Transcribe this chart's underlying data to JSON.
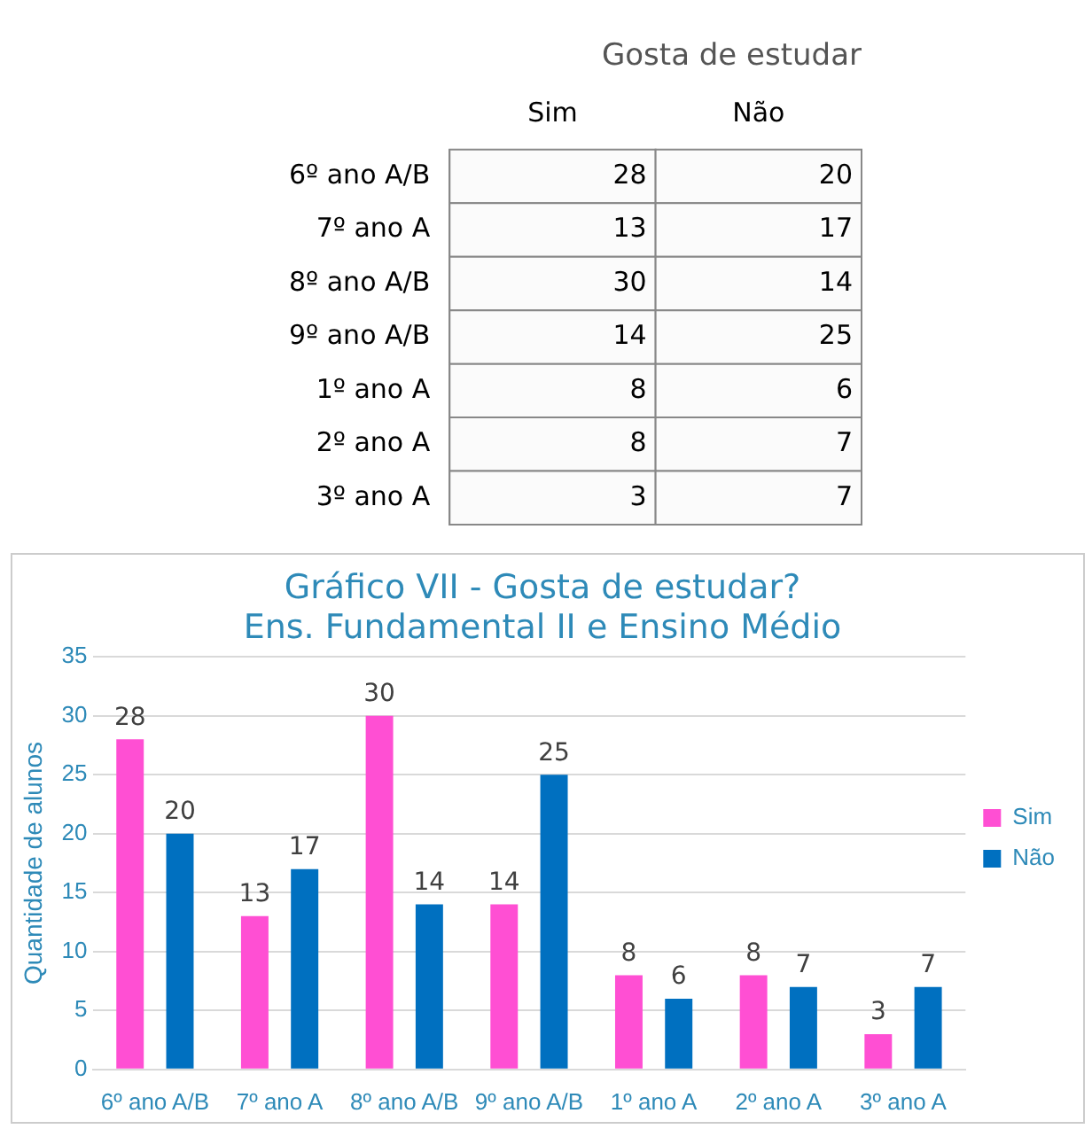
{
  "chart_data": [
    {
      "type": "heatmap",
      "title": "Gosta de estudar",
      "categories": [
        "Sim",
        "Não"
      ],
      "y_categories": [
        "6º ano A/B",
        "7º ano A",
        "8º ano A/B",
        "9º ano A/B",
        "1º ano A",
        "2º ano A",
        "3º ano A"
      ],
      "cells": [
        [
          28,
          20
        ],
        [
          13,
          17
        ],
        [
          30,
          14
        ],
        [
          14,
          25
        ],
        [
          8,
          6
        ],
        [
          8,
          7
        ],
        [
          3,
          7
        ]
      ],
      "data_labels": true
    },
    {
      "type": "bar",
      "title": [
        "Gráfico VII - Gosta de estudar?",
        "Ens. Fundamental II e Ensino Médio"
      ],
      "ylabel": "Quantidade de alunos",
      "categories": [
        "6º ano A/B",
        "7º ano A",
        "8º ano A/B",
        "9º ano A/B",
        "1º ano A",
        "2º ano A",
        "3º ano A"
      ],
      "series": [
        {
          "name": "Sim",
          "color": "#ff4fd3",
          "values": [
            28,
            13,
            30,
            14,
            8,
            8,
            3
          ]
        },
        {
          "name": "Não",
          "color": "#0070c0",
          "values": [
            20,
            17,
            14,
            25,
            6,
            7,
            7
          ]
        }
      ],
      "ylim": [
        0,
        35
      ],
      "yticks": [
        0,
        5,
        10,
        15,
        20,
        25,
        30,
        35
      ],
      "grid": "y",
      "legend": "right",
      "data_labels": true
    }
  ]
}
